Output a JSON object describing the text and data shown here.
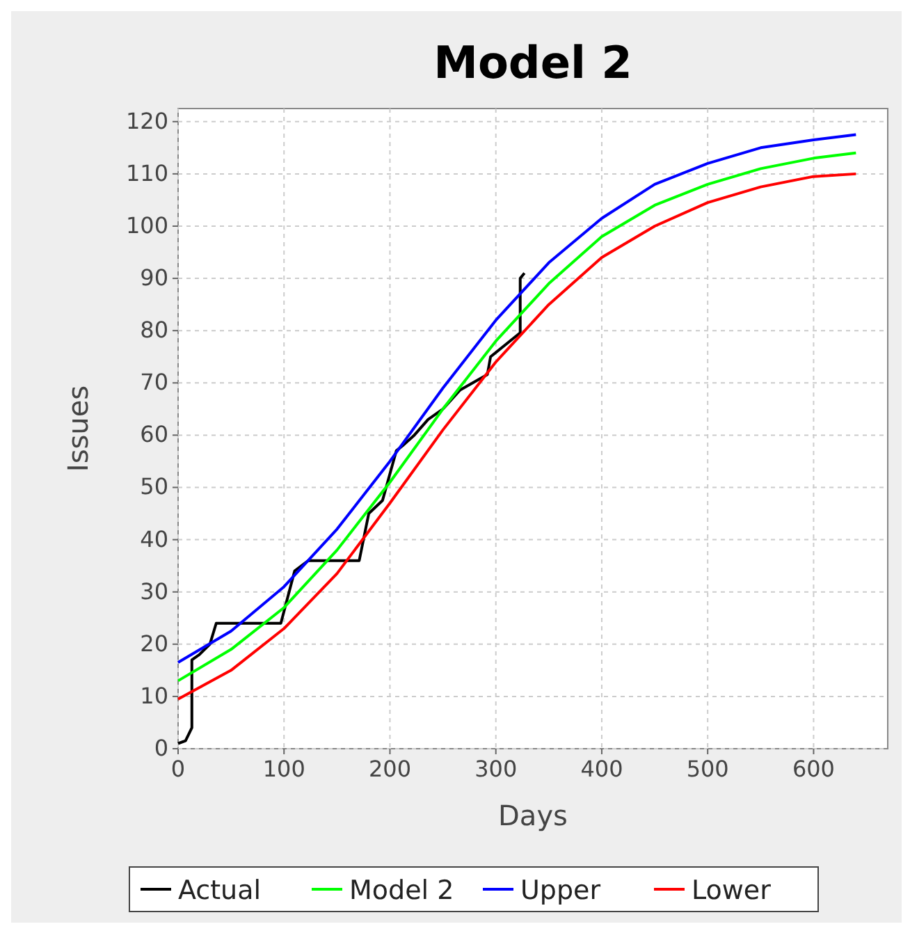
{
  "chart_data": {
    "type": "line",
    "title": "Model 2",
    "xlabel": "Days",
    "ylabel": "Issues",
    "xlim": [
      0,
      670
    ],
    "ylim": [
      0,
      122.5
    ],
    "xticks": [
      0,
      100,
      200,
      300,
      400,
      500,
      600
    ],
    "yticks": [
      0,
      10,
      20,
      30,
      40,
      50,
      60,
      70,
      80,
      90,
      100,
      110,
      120
    ],
    "grid": true,
    "legend": "bottom",
    "line_style": "solid",
    "series": [
      {
        "name": "Actual",
        "color": "#000000",
        "x": [
          0,
          7,
          13,
          13,
          20,
          30,
          36,
          97,
          110,
          123,
          171,
          176,
          180,
          193,
          206,
          212,
          223,
          236,
          250,
          266,
          292,
          295,
          323,
          323,
          327
        ],
        "values": [
          1,
          1.5,
          4,
          17,
          18,
          20,
          24,
          24,
          34,
          36,
          36,
          41,
          45,
          47.5,
          57,
          58,
          60,
          63,
          65,
          68.6,
          71.6,
          75,
          79.6,
          90,
          91
        ]
      },
      {
        "name": "Model 2",
        "color": "#00ff00",
        "x": [
          0,
          50,
          100,
          150,
          200,
          250,
          300,
          350,
          400,
          450,
          500,
          550,
          600,
          640
        ],
        "values": [
          13,
          19,
          27,
          38,
          51,
          65,
          78,
          89,
          98,
          104,
          108,
          111,
          113,
          114
        ]
      },
      {
        "name": "Upper",
        "color": "#0000ff",
        "x": [
          0,
          50,
          100,
          150,
          200,
          250,
          300,
          350,
          400,
          450,
          500,
          550,
          600,
          640
        ],
        "values": [
          16.5,
          22.5,
          31,
          42,
          55,
          69,
          82,
          93,
          101.5,
          108,
          112,
          115,
          116.5,
          117.5
        ]
      },
      {
        "name": "Lower",
        "color": "#ff0000",
        "x": [
          0,
          50,
          100,
          150,
          200,
          250,
          300,
          350,
          400,
          450,
          500,
          550,
          600,
          640
        ],
        "values": [
          9.5,
          15,
          23,
          33.5,
          47,
          61,
          74,
          85,
          94,
          100,
          104.5,
          107.5,
          109.5,
          110
        ]
      }
    ]
  }
}
